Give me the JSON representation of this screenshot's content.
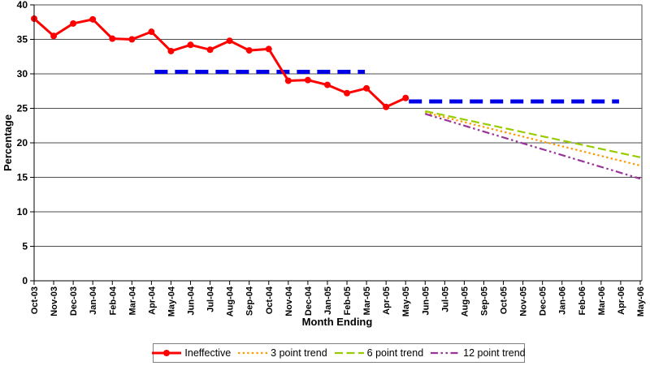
{
  "colors": {
    "background": "#FFFFFF",
    "gridline": "#4D4D4D",
    "axis": "#000000",
    "legend_border": "#808080",
    "target_blue": "#0000E8"
  },
  "chart_data": {
    "type": "line",
    "title": "",
    "xlabel": "Month Ending",
    "ylabel": "Percentage",
    "ylim": [
      0,
      40
    ],
    "ytick_step": 5,
    "yticks": [
      0,
      5,
      10,
      15,
      20,
      25,
      30,
      35,
      40
    ],
    "grid": "horizontal",
    "legend_position": "bottom",
    "categories": [
      "Oct-03",
      "Nov-03",
      "Dec-03",
      "Jan-04",
      "Feb-04",
      "Mar-04",
      "Apr-04",
      "May-04",
      "Jun-04",
      "Jul-04",
      "Aug-04",
      "Sep-04",
      "Oct-04",
      "Nov-04",
      "Dec-04",
      "Jan-05",
      "Feb-05",
      "Mar-05",
      "Apr-05",
      "May-05",
      "Jun-05",
      "Jul-05",
      "Aug-05",
      "Sep-05",
      "Oct-05",
      "Nov-05",
      "Dec-05",
      "Jan-06",
      "Feb-06",
      "Mar-06",
      "Apr-06",
      "May-06"
    ],
    "series": [
      {
        "name": "Ineffective",
        "color": "#FF0000",
        "line_style": "solid",
        "marker": "circle",
        "from": "Oct-03",
        "to": "May-05",
        "values": [
          38.0,
          35.5,
          37.3,
          37.9,
          35.1,
          35.0,
          36.1,
          33.3,
          34.2,
          33.5,
          34.8,
          33.4,
          33.6,
          29.0,
          29.1,
          28.4,
          27.2,
          27.9,
          25.2,
          26.5
        ]
      },
      {
        "name": "3 point trend",
        "color": "#FF9900",
        "line_style": "dotted",
        "marker": "none",
        "from": "Jun-05",
        "to": "May-06",
        "start_value": 24.4,
        "end_value": 16.7
      },
      {
        "name": "6 point trend",
        "color": "#99CC00",
        "line_style": "dashed",
        "marker": "none",
        "from": "Jun-05",
        "to": "May-06",
        "start_value": 24.6,
        "end_value": 17.9
      },
      {
        "name": "12 point trend",
        "color": "#993399",
        "line_style": "dash-dot-dot",
        "marker": "none",
        "from": "Jun-05",
        "to": "May-06",
        "start_value": 24.2,
        "end_value": 14.8
      }
    ],
    "target_lines": [
      {
        "value": 30.3,
        "from": "Apr-04",
        "to": "Mar-05",
        "color": "#0000E8",
        "style": "thick-dashed"
      },
      {
        "value": 26.0,
        "from": "May-05",
        "to": "Apr-06",
        "color": "#0000E8",
        "style": "thick-dashed"
      }
    ],
    "legend": [
      "Ineffective",
      "3 point trend",
      "6 point trend",
      "12 point trend"
    ]
  }
}
